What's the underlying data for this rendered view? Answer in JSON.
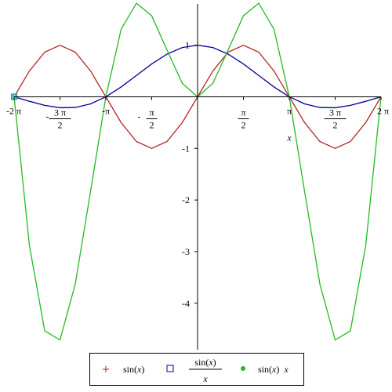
{
  "chart_data": {
    "type": "line",
    "x_axis": {
      "label": "x",
      "ticks": [
        {
          "value": -6.2832,
          "sign": "-",
          "coef": "2",
          "sym": "π"
        },
        {
          "value": -4.7124,
          "sign": "-",
          "num": "3 π",
          "den": "2"
        },
        {
          "value": -3.1416,
          "sign": "-",
          "sym": "π"
        },
        {
          "value": -1.5708,
          "sign": "-",
          "num": "π",
          "den": "2"
        },
        {
          "value": 1.5708,
          "sign": "",
          "num": "π",
          "den": "2"
        },
        {
          "value": 3.1416,
          "sign": "",
          "sym": "π"
        },
        {
          "value": 4.7124,
          "sign": "",
          "num": "3 π",
          "den": "2"
        },
        {
          "value": 6.2832,
          "sign": "",
          "coef": "2",
          "sym": "π"
        }
      ]
    },
    "y_axis": {
      "ticks": [
        {
          "value": 1,
          "label": "1"
        },
        {
          "value": -1,
          "label": "-1"
        },
        {
          "value": -2,
          "label": "-2"
        },
        {
          "value": -3,
          "label": "-3"
        },
        {
          "value": -4,
          "label": "-4"
        }
      ]
    },
    "xlim": [
      -6.2832,
      6.2832
    ],
    "ylim": [
      -4.9,
      1.8
    ],
    "x": [
      -6.2832,
      -5.7596,
      -5.236,
      -4.7124,
      -4.1888,
      -3.6652,
      -3.1416,
      -2.618,
      -2.0944,
      -1.5708,
      -1.0472,
      -0.5236,
      0.0,
      0.5236,
      1.0472,
      1.5708,
      2.0944,
      2.618,
      3.1416,
      3.6652,
      4.1888,
      4.7124,
      5.236,
      5.7596,
      6.2832
    ],
    "series": [
      {
        "color": "#b22222",
        "marker": "plus",
        "y": [
          0,
          0.5,
          0.866,
          1,
          0.866,
          0.5,
          0,
          -0.5,
          -0.866,
          -1,
          -0.866,
          -0.5,
          0,
          0.5,
          0.866,
          1,
          0.866,
          0.5,
          0,
          -0.5,
          -0.866,
          -1,
          -0.866,
          -0.5,
          0
        ]
      },
      {
        "color": "#000099",
        "marker": "box",
        "y": [
          0,
          -0.0868,
          -0.1654,
          -0.2122,
          -0.2067,
          -0.1364,
          0,
          0.191,
          0.4135,
          0.6366,
          0.827,
          0.9549,
          1,
          0.9549,
          0.827,
          0.6366,
          0.4135,
          0.191,
          0,
          -0.1364,
          -0.2067,
          -0.2122,
          -0.1654,
          -0.0868,
          0
        ]
      },
      {
        "color": "#22bb22",
        "marker": "circle",
        "y": [
          0,
          -2.88,
          -4.534,
          -4.712,
          -3.628,
          -1.833,
          0,
          1.309,
          1.814,
          1.571,
          0.907,
          0.262,
          0,
          0.262,
          0.907,
          1.571,
          1.814,
          1.309,
          0,
          -1.833,
          -3.628,
          -4.712,
          -4.534,
          -2.88,
          0
        ]
      }
    ],
    "legend_position": "bottom"
  },
  "colors": {
    "axis": "#000000",
    "background": "#ffffff"
  }
}
